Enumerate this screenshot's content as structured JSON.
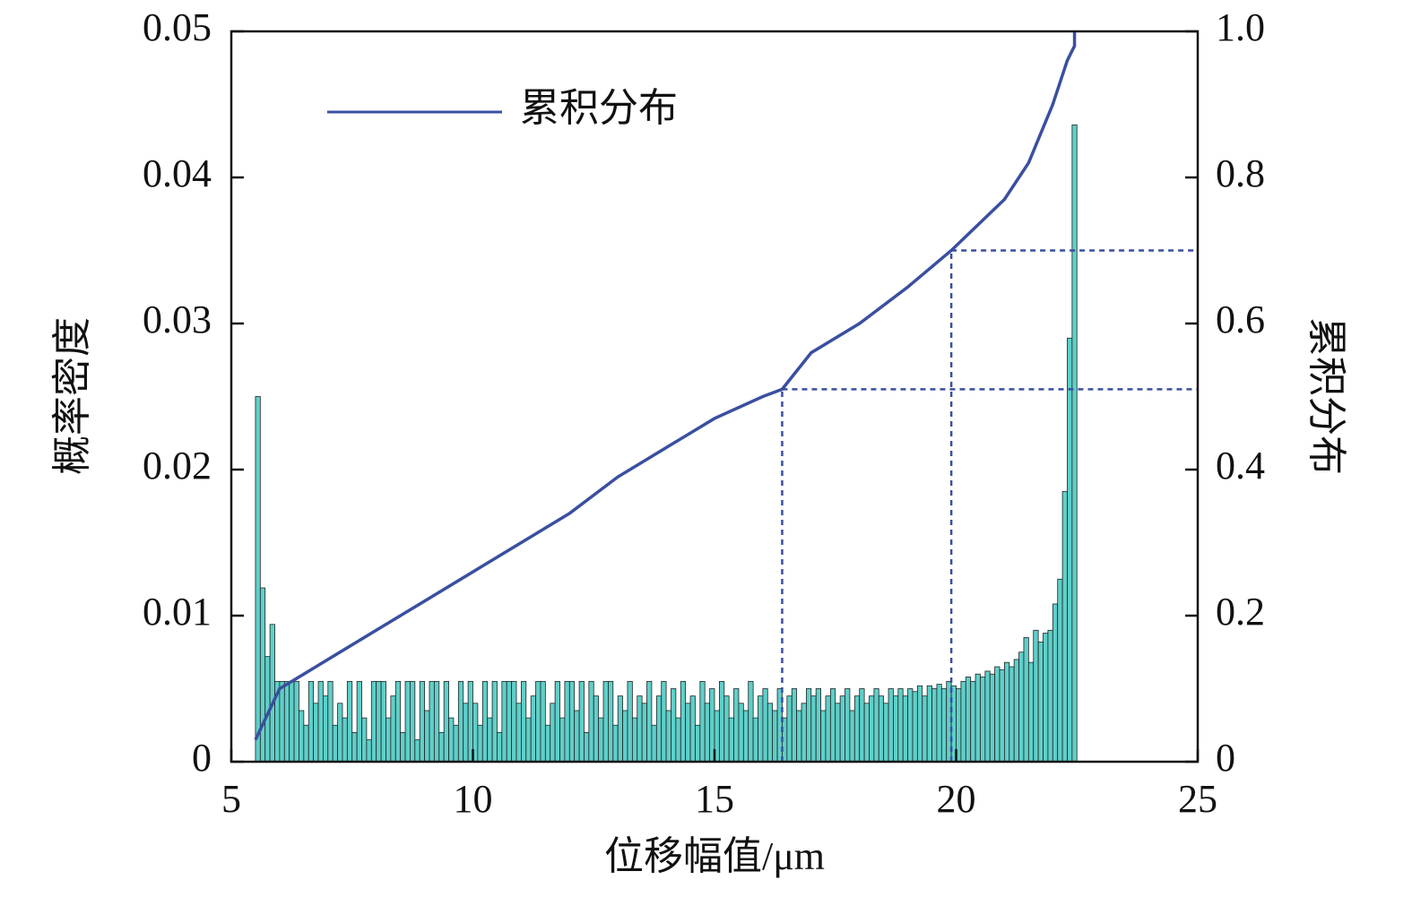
{
  "chart_data": {
    "type": "histogram",
    "xlabel": "位移幅值/μm",
    "ylabel": "概率密度",
    "y2label": "累积分布",
    "xlim": [
      5,
      25
    ],
    "xticks": [
      5,
      10,
      15,
      20,
      25
    ],
    "ylim": [
      0,
      0.05
    ],
    "yticks": [
      0,
      0.01,
      0.02,
      0.03,
      0.04,
      0.05
    ],
    "y2lim": [
      0,
      1
    ],
    "y2ticks": [
      0,
      0.2,
      0.4,
      0.6,
      0.8,
      {
        "value": 1,
        "label": "1.0"
      }
    ],
    "grid": false,
    "legend": "upper left",
    "color": "#5fcfc9",
    "bins": [
      5.5,
      5.6,
      5.7,
      5.8,
      5.9,
      6.0,
      6.1,
      6.2,
      6.3,
      6.4,
      6.5,
      6.6,
      6.7,
      6.8,
      6.9,
      7.0,
      7.1,
      7.2,
      7.3,
      7.4,
      7.5,
      7.6,
      7.7,
      7.8,
      7.9,
      8.0,
      8.1,
      8.2,
      8.3,
      8.4,
      8.5,
      8.6,
      8.7,
      8.8,
      8.9,
      9.0,
      9.1,
      9.2,
      9.3,
      9.4,
      9.5,
      9.6,
      9.7,
      9.8,
      9.9,
      10.0,
      10.1,
      10.2,
      10.3,
      10.4,
      10.5,
      10.6,
      10.7,
      10.8,
      10.9,
      11.0,
      11.1,
      11.2,
      11.3,
      11.4,
      11.5,
      11.6,
      11.7,
      11.8,
      11.9,
      12.0,
      12.1,
      12.2,
      12.3,
      12.4,
      12.5,
      12.6,
      12.7,
      12.8,
      12.9,
      13.0,
      13.1,
      13.2,
      13.3,
      13.4,
      13.5,
      13.6,
      13.7,
      13.8,
      13.9,
      14.0,
      14.1,
      14.2,
      14.3,
      14.4,
      14.5,
      14.6,
      14.7,
      14.8,
      14.9,
      15.0,
      15.1,
      15.2,
      15.3,
      15.4,
      15.5,
      15.6,
      15.7,
      15.8,
      15.9,
      16.0,
      16.1,
      16.2,
      16.3,
      16.4,
      16.5,
      16.6,
      16.7,
      16.8,
      16.9,
      17.0,
      17.1,
      17.2,
      17.3,
      17.4,
      17.5,
      17.6,
      17.7,
      17.8,
      17.9,
      18.0,
      18.1,
      18.2,
      18.3,
      18.4,
      18.5,
      18.6,
      18.7,
      18.8,
      18.9,
      19.0,
      19.1,
      19.2,
      19.3,
      19.4,
      19.5,
      19.6,
      19.7,
      19.8,
      19.9,
      20.0,
      20.1,
      20.2,
      20.3,
      20.4,
      20.5,
      20.6,
      20.7,
      20.8,
      20.9,
      21.0,
      21.1,
      21.2,
      21.3,
      21.4,
      21.5,
      21.6,
      21.7,
      21.8,
      21.9,
      22.0,
      22.1,
      22.2,
      22.3,
      22.4,
      22.5
    ],
    "values": [
      0.025,
      0.0119,
      0.0072,
      0.0094,
      0.0055,
      0.0055,
      0.0055,
      0.0055,
      0.0055,
      0.0035,
      0.0025,
      0.0055,
      0.004,
      0.0055,
      0.0045,
      0.0055,
      0.0025,
      0.004,
      0.003,
      0.0055,
      0.002,
      0.0055,
      0.003,
      0.0015,
      0.0055,
      0.0055,
      0.0055,
      0.003,
      0.0045,
      0.0055,
      0.002,
      0.0055,
      0.0055,
      0.0015,
      0.0055,
      0.0035,
      0.0055,
      0.0055,
      0.002,
      0.0055,
      0.003,
      0.0025,
      0.0055,
      0.004,
      0.0055,
      0.004,
      0.0025,
      0.0055,
      0.003,
      0.0055,
      0.002,
      0.0055,
      0.0055,
      0.0055,
      0.004,
      0.0055,
      0.003,
      0.0045,
      0.0055,
      0.0055,
      0.0025,
      0.004,
      0.0055,
      0.003,
      0.0055,
      0.0055,
      0.0035,
      0.0055,
      0.002,
      0.0055,
      0.0045,
      0.003,
      0.0055,
      0.0055,
      0.0025,
      0.0045,
      0.0035,
      0.0055,
      0.003,
      0.0045,
      0.004,
      0.0055,
      0.0025,
      0.0045,
      0.0055,
      0.0035,
      0.005,
      0.003,
      0.0055,
      0.004,
      0.0045,
      0.0025,
      0.0055,
      0.004,
      0.005,
      0.0035,
      0.0055,
      0.0045,
      0.003,
      0.005,
      0.004,
      0.0035,
      0.0055,
      0.003,
      0.0045,
      0.005,
      0.004,
      0.0035,
      0.005,
      0.003,
      0.0045,
      0.005,
      0.0035,
      0.004,
      0.005,
      0.0045,
      0.005,
      0.0035,
      0.0045,
      0.005,
      0.004,
      0.0045,
      0.005,
      0.0035,
      0.0045,
      0.005,
      0.004,
      0.0045,
      0.005,
      0.0045,
      0.004,
      0.005,
      0.0045,
      0.005,
      0.0045,
      0.005,
      0.0048,
      0.0052,
      0.0045,
      0.0052,
      0.005,
      0.0053,
      0.005,
      0.0055,
      0.0052,
      0.005,
      0.0055,
      0.0058,
      0.0055,
      0.006,
      0.0058,
      0.0062,
      0.006,
      0.0065,
      0.0063,
      0.0068,
      0.0065,
      0.007,
      0.0075,
      0.0085,
      0.0068,
      0.009,
      0.0082,
      0.0088,
      0.009,
      0.0108,
      0.0125,
      0.0185,
      0.029,
      0.0436
    ],
    "series": [
      {
        "name": "累积分布",
        "type": "line",
        "axis": "y2",
        "color": "#3a4fa0",
        "x": [
          5.5,
          6,
          6.5,
          7,
          8,
          9,
          10,
          11,
          12,
          13,
          14,
          15,
          16,
          16.4,
          17,
          18,
          19,
          19.9,
          21,
          21.5,
          22,
          22.3,
          22.45,
          22.45
        ],
        "values": [
          0.03,
          0.1,
          0.12,
          0.14,
          0.18,
          0.22,
          0.26,
          0.3,
          0.34,
          0.39,
          0.43,
          0.47,
          0.5,
          0.51,
          0.56,
          0.6,
          0.65,
          0.7,
          0.77,
          0.82,
          0.9,
          0.96,
          0.98,
          1
        ]
      }
    ],
    "reference_lines": [
      {
        "x": 16.4,
        "y": 0.51
      },
      {
        "x": 19.9,
        "y": 0.7
      }
    ]
  }
}
